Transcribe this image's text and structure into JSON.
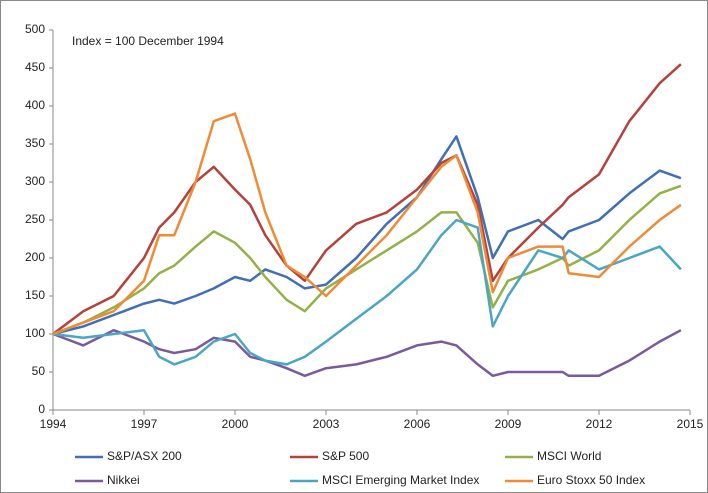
{
  "chart_data": {
    "type": "line",
    "annotation": "Index = 100 December 1994",
    "x": [
      1994,
      1995,
      1996,
      1997,
      1997.5,
      1998,
      1998.7,
      1999.3,
      2000,
      2000.5,
      2001,
      2001.7,
      2002.3,
      2003,
      2004,
      2005,
      2006,
      2006.8,
      2007.3,
      2008,
      2008.5,
      2009,
      2010,
      2010.8,
      2011,
      2012,
      2013,
      2014,
      2014.7
    ],
    "series": [
      {
        "name": "S&P/ASX 200",
        "color": "#3f6fb6",
        "values": [
          100,
          110,
          125,
          140,
          145,
          140,
          150,
          160,
          175,
          170,
          185,
          175,
          160,
          165,
          200,
          245,
          280,
          330,
          360,
          280,
          200,
          235,
          250,
          225,
          235,
          250,
          285,
          315,
          305
        ]
      },
      {
        "name": "S&P 500",
        "color": "#b5413b",
        "values": [
          100,
          130,
          150,
          200,
          240,
          260,
          300,
          320,
          290,
          270,
          230,
          190,
          170,
          210,
          245,
          260,
          290,
          325,
          335,
          270,
          170,
          200,
          240,
          270,
          280,
          310,
          380,
          430,
          455
        ]
      },
      {
        "name": "MSCI World",
        "color": "#93b148",
        "values": [
          100,
          115,
          135,
          160,
          180,
          190,
          215,
          235,
          220,
          200,
          175,
          145,
          130,
          160,
          185,
          210,
          235,
          260,
          260,
          220,
          135,
          170,
          185,
          200,
          190,
          210,
          250,
          285,
          295
        ]
      },
      {
        "name": "Nikkei",
        "color": "#7a5a9c",
        "values": [
          100,
          85,
          105,
          90,
          80,
          75,
          80,
          95,
          90,
          70,
          65,
          55,
          45,
          55,
          60,
          70,
          85,
          90,
          85,
          60,
          45,
          50,
          50,
          50,
          45,
          45,
          65,
          90,
          105
        ]
      },
      {
        "name": "MSCI Emerging Market Index",
        "color": "#4aa6c4",
        "values": [
          100,
          95,
          100,
          105,
          70,
          60,
          70,
          90,
          100,
          75,
          65,
          60,
          70,
          90,
          120,
          150,
          185,
          230,
          250,
          240,
          110,
          150,
          210,
          200,
          210,
          185,
          200,
          215,
          185
        ]
      },
      {
        "name": "Euro Stoxx 50 Index",
        "color": "#f08b35",
        "values": [
          100,
          115,
          130,
          170,
          230,
          230,
          300,
          380,
          390,
          330,
          260,
          190,
          175,
          150,
          190,
          230,
          280,
          320,
          335,
          260,
          155,
          200,
          215,
          215,
          180,
          175,
          215,
          250,
          270
        ]
      }
    ],
    "xlim": [
      1994,
      2015
    ],
    "xticks": [
      1994,
      1997,
      2000,
      2003,
      2006,
      2009,
      2012,
      2015
    ],
    "ylim": [
      0,
      500
    ],
    "yticks": [
      0,
      50,
      100,
      150,
      200,
      250,
      300,
      350,
      400,
      450,
      500
    ],
    "grid": false,
    "legend": "bottom"
  }
}
